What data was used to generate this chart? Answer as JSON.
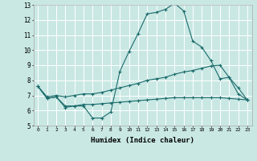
{
  "xlabel": "Humidex (Indice chaleur)",
  "xlim": [
    -0.5,
    23.5
  ],
  "ylim": [
    5,
    13
  ],
  "yticks": [
    5,
    6,
    7,
    8,
    9,
    10,
    11,
    12,
    13
  ],
  "xticks": [
    0,
    1,
    2,
    3,
    4,
    5,
    6,
    7,
    8,
    9,
    10,
    11,
    12,
    13,
    14,
    15,
    16,
    17,
    18,
    19,
    20,
    21,
    22,
    23
  ],
  "background_color": "#c9e8e4",
  "grid_color": "#ffffff",
  "line_color": "#1a6b6b",
  "line1_x": [
    0,
    1,
    2,
    3,
    4,
    5,
    6,
    7,
    8,
    9,
    10,
    11,
    12,
    13,
    14,
    15,
    16,
    17,
    18,
    19,
    20,
    21,
    22,
    23
  ],
  "line1_y": [
    7.6,
    6.8,
    6.9,
    6.2,
    6.3,
    6.3,
    5.5,
    5.5,
    5.9,
    8.6,
    9.9,
    11.1,
    12.4,
    12.5,
    12.7,
    13.1,
    12.6,
    10.6,
    10.2,
    9.3,
    8.1,
    8.2,
    7.1,
    6.7
  ],
  "line2_x": [
    0,
    1,
    2,
    3,
    4,
    5,
    6,
    7,
    8,
    9,
    10,
    11,
    12,
    13,
    14,
    15,
    16,
    17,
    18,
    19,
    20,
    21,
    22,
    23
  ],
  "line2_y": [
    7.6,
    6.9,
    7.0,
    6.9,
    7.0,
    7.1,
    7.1,
    7.2,
    7.35,
    7.5,
    7.65,
    7.8,
    8.0,
    8.1,
    8.2,
    8.4,
    8.55,
    8.65,
    8.8,
    8.95,
    9.0,
    8.2,
    7.5,
    6.7
  ],
  "line3_x": [
    0,
    1,
    2,
    3,
    4,
    5,
    6,
    7,
    8,
    9,
    10,
    11,
    12,
    13,
    14,
    15,
    16,
    17,
    18,
    19,
    20,
    21,
    22,
    23
  ],
  "line3_y": [
    7.6,
    6.8,
    6.9,
    6.3,
    6.3,
    6.4,
    6.4,
    6.45,
    6.5,
    6.55,
    6.6,
    6.65,
    6.7,
    6.75,
    6.8,
    6.85,
    6.85,
    6.85,
    6.85,
    6.85,
    6.85,
    6.8,
    6.75,
    6.7
  ]
}
